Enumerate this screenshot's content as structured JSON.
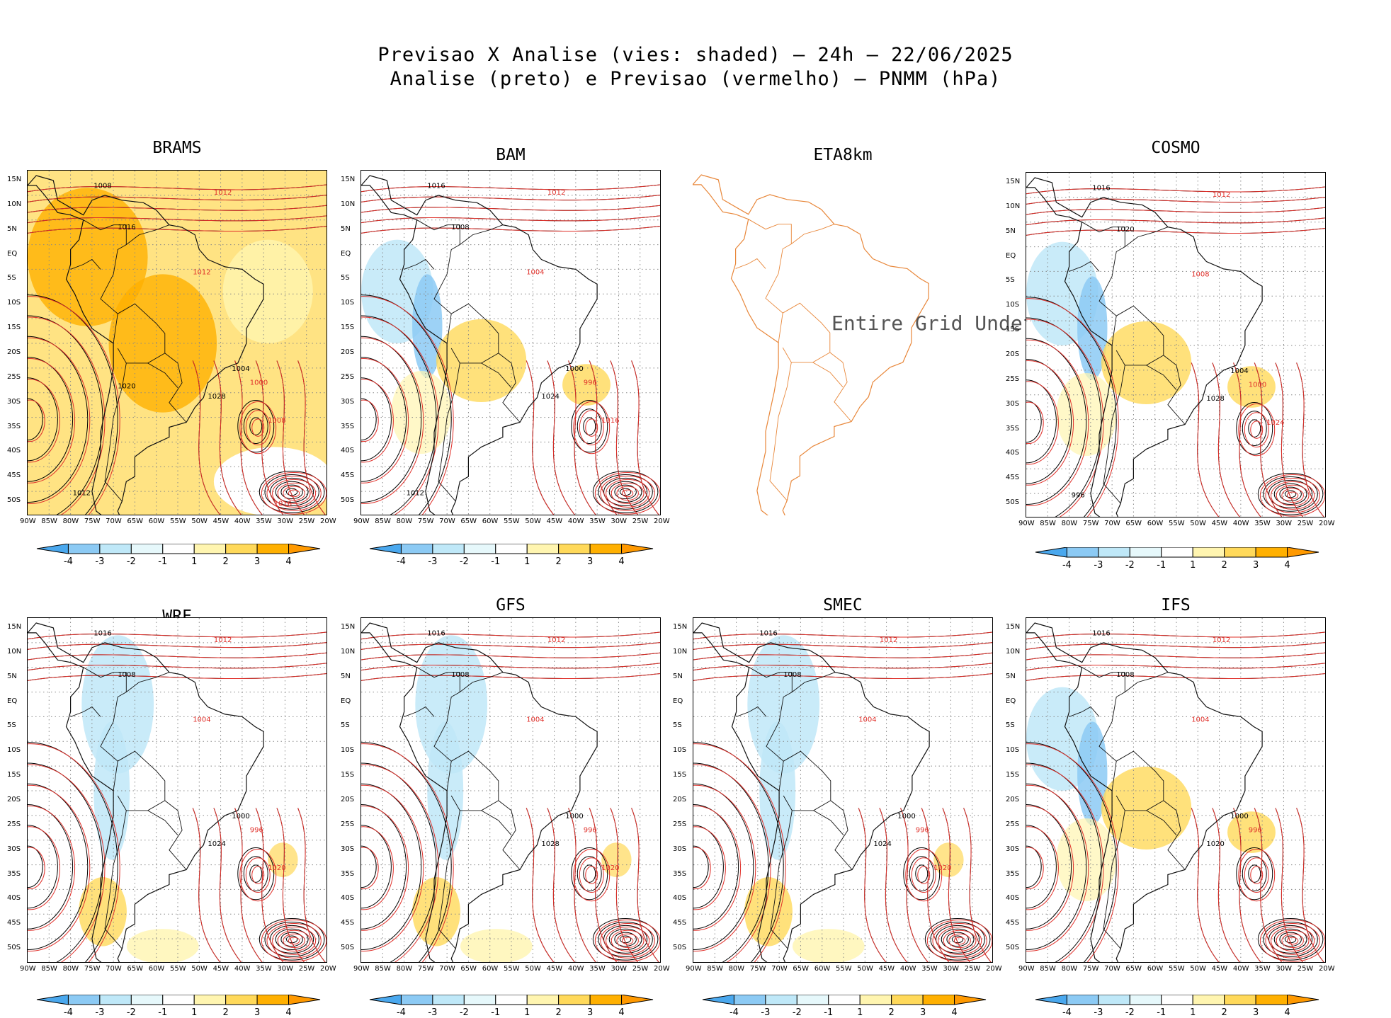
{
  "title_line1": "Previsao X Analise (vies: shaded) – 24h – 22/06/2025",
  "title_line2": "Analise (preto) e Previsao (vermelho) – PNMM (hPa)",
  "lat_labels": [
    "15N",
    "10N",
    "5N",
    "EQ",
    "5S",
    "10S",
    "15S",
    "20S",
    "25S",
    "30S",
    "35S",
    "40S",
    "45S",
    "50S"
  ],
  "lon_labels": [
    "90W",
    "85W",
    "80W",
    "75W",
    "70W",
    "65W",
    "60W",
    "55W",
    "50W",
    "45W",
    "40W",
    "35W",
    "30W",
    "25W",
    "20W"
  ],
  "colorbar": {
    "labels": [
      "-4",
      "-3",
      "-2",
      "-1",
      "1",
      "2",
      "3",
      "4"
    ],
    "colors": [
      "#4aa8ee",
      "#8ccaf4",
      "#bfe8f8",
      "#e6f8fb",
      "#ffffff",
      "#fff5b0",
      "#ffd95a",
      "#ffb000",
      "#ff9900"
    ]
  },
  "colors": {
    "analysis": "#000000",
    "forecast": "#e0302a",
    "coast": "#111111",
    "eta_coast": "#e8873a"
  },
  "panels": [
    {
      "name": "BRAMS",
      "bias": "warm",
      "labels": [
        "1008",
        "1012",
        "1016",
        "1012",
        "1004",
        "1000",
        "1028",
        "1008",
        "1012",
        "1016",
        "1020"
      ]
    },
    {
      "name": "BAM",
      "bias": "mixed",
      "labels": [
        "1016",
        "1012",
        "1008",
        "1004",
        "1000",
        "996",
        "1024",
        "1016",
        "1012"
      ]
    },
    {
      "name": "ETA8km",
      "bias": "none",
      "undef_text": "Entire Grid Undef"
    },
    {
      "name": "COSMO",
      "bias": "mixed",
      "labels": [
        "1016",
        "1012",
        "1020",
        "1008",
        "1004",
        "1000",
        "1028",
        "1024",
        "996"
      ]
    },
    {
      "name": "WRF",
      "bias": "cool",
      "labels": [
        "1016",
        "1012",
        "1008",
        "1004",
        "1000",
        "996",
        "1024",
        "1020"
      ]
    },
    {
      "name": "GFS",
      "bias": "cool",
      "labels": [
        "1016",
        "1012",
        "1008",
        "1004",
        "1000",
        "996",
        "1028",
        "1020"
      ]
    },
    {
      "name": "SMEC",
      "bias": "cool",
      "labels": [
        "1016",
        "1012",
        "1008",
        "1004",
        "1000",
        "996",
        "1024",
        "1020"
      ]
    },
    {
      "name": "IFS",
      "bias": "mixed",
      "labels": [
        "1016",
        "1012",
        "1008",
        "1004",
        "1000",
        "996",
        "1020"
      ]
    }
  ]
}
